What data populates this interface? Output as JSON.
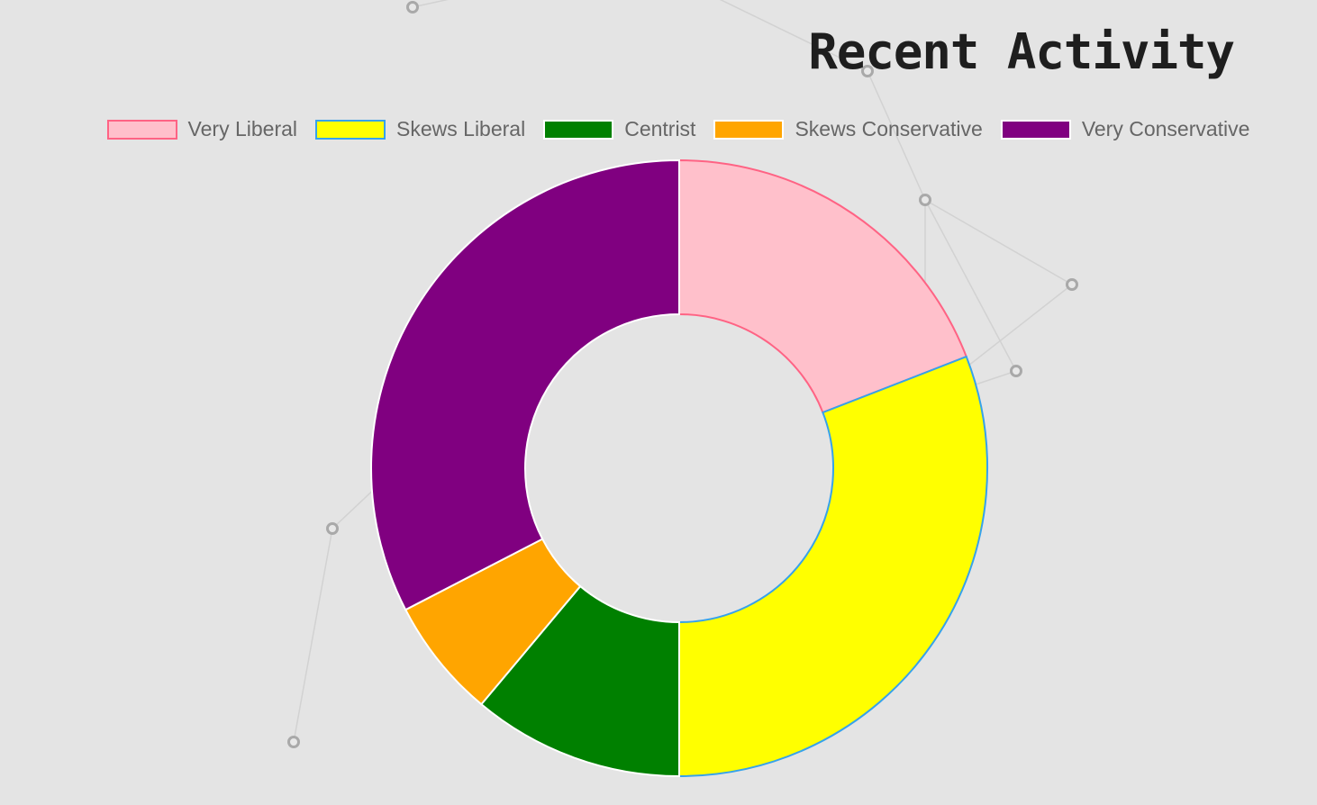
{
  "page": {
    "title": "Recent Activity"
  },
  "colors": {
    "background": "#e4e4e4"
  },
  "chart_data": {
    "type": "pie",
    "variant": "doughnut",
    "title": "",
    "legend_position": "top",
    "categories": [
      "Very Liberal",
      "Skews Liberal",
      "Centrist",
      "Skews Conservative",
      "Very Conservative"
    ],
    "series": [
      {
        "values": [
          19.1,
          30.9,
          11.1,
          6.3,
          32.6
        ]
      }
    ],
    "colors": [
      "#ffc0cb",
      "#ffff00",
      "#008000",
      "#ffa500",
      "#800080"
    ],
    "border_colors": [
      "#ff6384",
      "#36a2eb",
      "#ffffff",
      "#ffffff",
      "#ffffff"
    ]
  }
}
